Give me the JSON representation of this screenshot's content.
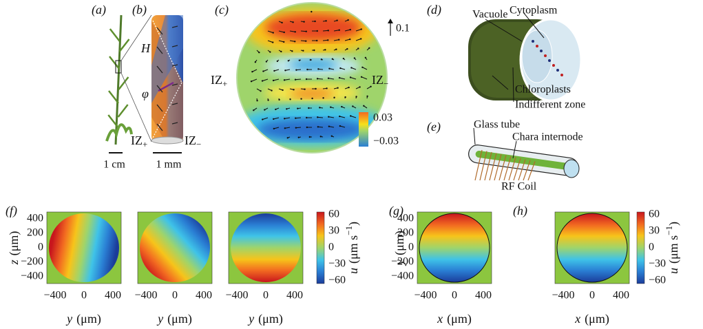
{
  "panel_a": {
    "label": "(a)",
    "scale_bar": "1 cm"
  },
  "panel_b": {
    "label": "(b)",
    "height_symbol": "H",
    "angle_symbol": "φ",
    "scale_bar": "1 mm",
    "iz_plus": {
      "text": "IZ",
      "sub": "+"
    },
    "iz_minus": {
      "text": "IZ",
      "sub": "−"
    }
  },
  "panel_c": {
    "label": "(c)",
    "arrow_scale": "0.1",
    "iz_plus": {
      "text": "IZ",
      "sub": "+"
    },
    "iz_minus": {
      "text": "IZ",
      "sub": "−"
    },
    "colorbar_ticks": [
      "0.03",
      "−0.03"
    ]
  },
  "panel_d": {
    "label": "(d)",
    "labels": [
      "Vacuole",
      "Cytoplasm",
      "Chloroplasts",
      "Indifferent zone"
    ]
  },
  "panel_e": {
    "label": "(e)",
    "labels": [
      "Glass tube",
      "Chara internode",
      "RF Coil"
    ]
  },
  "panel_f": {
    "label": "(f)",
    "y_axis": {
      "var": "z",
      "unit": "(μm)"
    },
    "x_axis": {
      "var": "y",
      "unit": "(μm)"
    },
    "yticks": [
      "400",
      "200",
      "0",
      "−200",
      "−400"
    ],
    "xticks": [
      "−400",
      "0",
      "400"
    ],
    "colorbar_ticks": [
      "60",
      "30",
      "0",
      "−30",
      "−60"
    ],
    "colorbar_label": {
      "var": "u",
      "unit": "(μm s",
      "sup": "−1",
      "end": ")"
    }
  },
  "panel_g": {
    "label": "(g)",
    "y_axis": {
      "var": "y",
      "unit": "(μm)"
    },
    "x_axis": {
      "var": "x",
      "unit": "(μm)"
    },
    "yticks": [
      "400",
      "200",
      "0",
      "−200",
      "−400"
    ],
    "xticks": [
      "−400",
      "0",
      "400"
    ]
  },
  "panel_h": {
    "label": "(h)",
    "x_axis": {
      "var": "x",
      "unit": "(μm)"
    },
    "xticks": [
      "−400",
      "0",
      "400"
    ],
    "colorbar_ticks": [
      "60",
      "30",
      "0",
      "−30",
      "−60"
    ],
    "colorbar_label": {
      "var": "u",
      "unit": "(μm s",
      "sup": "−1",
      "end": ")"
    }
  }
}
